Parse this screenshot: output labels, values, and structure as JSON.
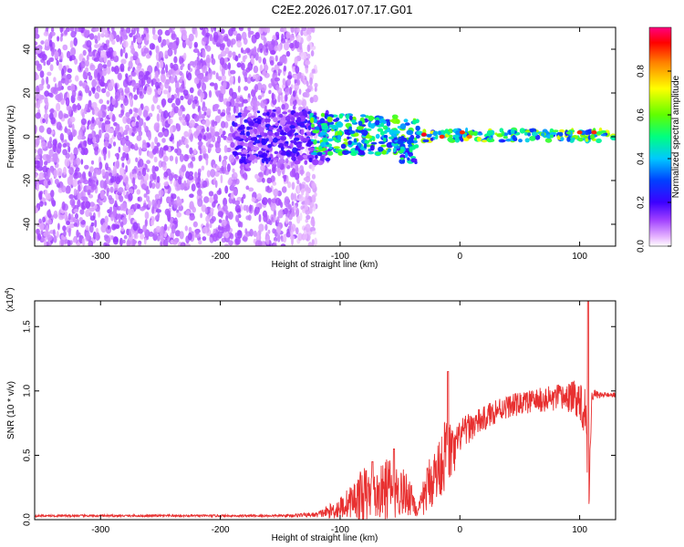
{
  "figure": {
    "title": "C2E2.2026.017.07.17.G01"
  },
  "chart_data": [
    {
      "type": "heatmap",
      "id": "spectrogram",
      "xlabel": "Height of straight line (km)",
      "ylabel": "Frequency (Hz)",
      "xlim": [
        -355,
        130
      ],
      "ylim": [
        -50,
        50
      ],
      "xticks": [
        -300,
        -200,
        -100,
        0,
        100
      ],
      "yticks": [
        -40,
        -20,
        0,
        20,
        40
      ],
      "grid": false,
      "colorbar": {
        "label": "Normalized spectral amplitude",
        "range": [
          0,
          1
        ],
        "ticks": [
          "0.0",
          "0.2",
          "0.4",
          "0.6",
          "0.8"
        ],
        "colors": [
          "#ffffff",
          "#e8b8ff",
          "#a040ff",
          "#3c00ff",
          "#0040ff",
          "#00c8ff",
          "#00ff80",
          "#60ff00",
          "#ffff00",
          "#ff8000",
          "#ff0000",
          "#ff0080"
        ]
      },
      "regions": [
        {
          "x": [
            -355,
            -120
          ],
          "freq": [
            -50,
            50
          ],
          "amplitude": 0.08,
          "pattern": "broadband noise"
        },
        {
          "x": [
            -190,
            -110
          ],
          "freq": [
            -12,
            12
          ],
          "amplitude": 0.15,
          "pattern": "narrowing band"
        },
        {
          "x": [
            -125,
            -35
          ],
          "freq": [
            -8,
            10
          ],
          "amplitude": 0.4,
          "pattern": "band"
        },
        {
          "x": [
            -50,
            -36
          ],
          "freq": [
            -12,
            0
          ],
          "amplitude": 0.35,
          "pattern": "tail"
        },
        {
          "x": [
            -35,
            130
          ],
          "freq": [
            -2,
            3
          ],
          "amplitude": 0.45,
          "pattern": "steady line"
        }
      ],
      "peaks": [
        {
          "x": -30,
          "freq": 1,
          "amplitude": 0.95
        },
        {
          "x": -15,
          "freq": 0,
          "amplitude": 0.9
        },
        {
          "x": 2,
          "freq": 2,
          "amplitude": 0.9
        },
        {
          "x": 8,
          "freq": 0,
          "amplitude": 0.85
        },
        {
          "x": 100,
          "freq": 2,
          "amplitude": 0.9
        },
        {
          "x": 112,
          "freq": 2,
          "amplitude": 0.9
        }
      ]
    },
    {
      "type": "line",
      "id": "snr",
      "xlabel": "Height of straight line (km)",
      "ylabel": "SNR (10 * v/v)",
      "y_multiplier": "(x10^4)",
      "y_multiplier_base": "(x10",
      "y_multiplier_exp": "4",
      "y_multiplier_close": ")",
      "xlim": [
        -355,
        130
      ],
      "ylim": [
        0,
        17000
      ],
      "xticks": [
        -300,
        -200,
        -100,
        0,
        100
      ],
      "yticks": [
        "0.0",
        "0.5",
        "1.0",
        "1.5"
      ],
      "ytick_values": [
        0,
        5000,
        10000,
        15000
      ],
      "grid": false,
      "series": [
        {
          "color": "#e83030",
          "envelope": {
            "x": [
              -355,
              -150,
              -120,
              -110,
              -100,
              -90,
              -80,
              -70,
              -60,
              -50,
              -40,
              -35,
              -30,
              -25,
              -20,
              -15,
              -10,
              -5,
              0,
              10,
              20,
              30,
              40,
              50,
              60,
              70,
              80,
              90,
              100,
              105,
              108,
              110,
              115,
              120,
              130
            ],
            "mid": [
              300,
              300,
              380,
              600,
              900,
              1500,
              1900,
              1800,
              2500,
              2200,
              1800,
              500,
              1800,
              3000,
              3500,
              4500,
              5500,
              5000,
              6500,
              7300,
              7800,
              8500,
              8800,
              9000,
              9200,
              9300,
              9400,
              9500,
              9400,
              8500,
              2000,
              9700,
              9700,
              9700,
              9700
            ],
            "amp": [
              80,
              90,
              200,
              500,
              900,
              1300,
              2300,
              1800,
              2500,
              2000,
              1500,
              400,
              1500,
              2200,
              2300,
              2600,
              3000,
              1800,
              1300,
              1100,
              1000,
              1000,
              900,
              900,
              900,
              1000,
              1100,
              1200,
              1500,
              2500,
              1800,
              500,
              300,
              200,
              200
            ]
          },
          "peaks": [
            {
              "x": -73,
              "y": 4500
            },
            {
              "x": -55,
              "y": 5500
            },
            {
              "x": -10,
              "y": 11500
            },
            {
              "x": 107,
              "y": 17000
            }
          ]
        }
      ]
    }
  ]
}
